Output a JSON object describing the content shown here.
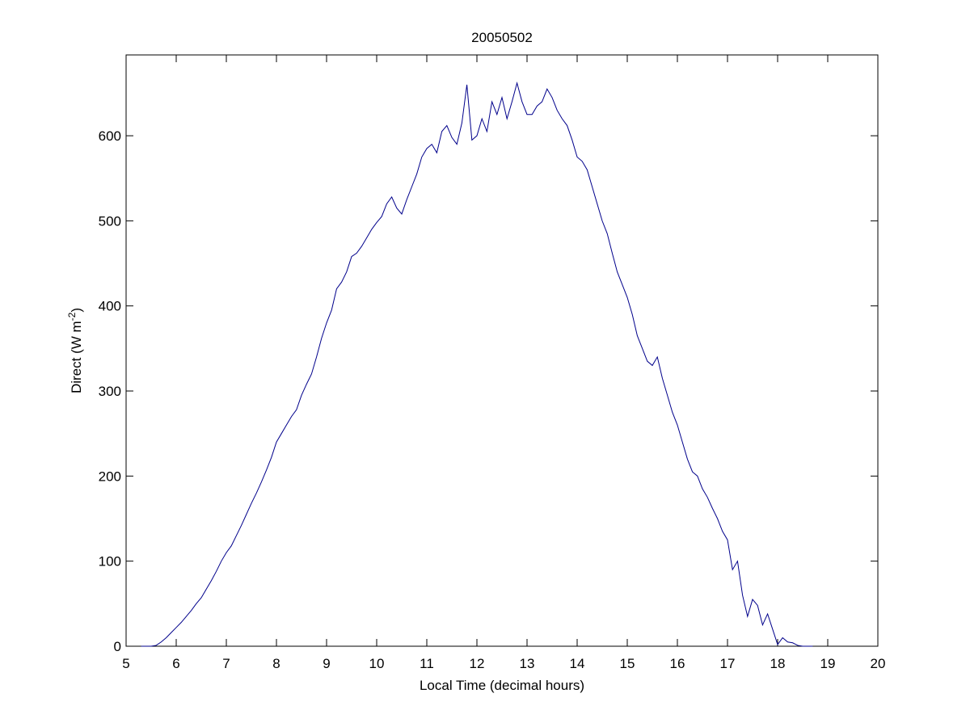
{
  "chart_data": {
    "type": "line",
    "title": "20050502",
    "xlabel": "Local Time (decimal hours)",
    "ylabel": {
      "text": "Direct (W m",
      "superscript": "-2",
      "suffix": ")"
    },
    "x": [
      5.3,
      5.4,
      5.5,
      5.6,
      5.7,
      5.8,
      5.9,
      6.0,
      6.1,
      6.2,
      6.3,
      6.4,
      6.5,
      6.6,
      6.7,
      6.8,
      6.9,
      7.0,
      7.1,
      7.2,
      7.3,
      7.4,
      7.5,
      7.6,
      7.7,
      7.8,
      7.9,
      8.0,
      8.1,
      8.2,
      8.3,
      8.4,
      8.5,
      8.6,
      8.7,
      8.8,
      8.9,
      9.0,
      9.1,
      9.2,
      9.3,
      9.4,
      9.5,
      9.6,
      9.7,
      9.8,
      9.9,
      10.0,
      10.1,
      10.2,
      10.3,
      10.4,
      10.5,
      10.6,
      10.7,
      10.8,
      10.9,
      11.0,
      11.1,
      11.2,
      11.3,
      11.4,
      11.5,
      11.6,
      11.7,
      11.8,
      11.9,
      12.0,
      12.1,
      12.2,
      12.3,
      12.4,
      12.5,
      12.6,
      12.7,
      12.8,
      12.9,
      13.0,
      13.1,
      13.2,
      13.3,
      13.4,
      13.5,
      13.6,
      13.7,
      13.8,
      13.9,
      14.0,
      14.1,
      14.2,
      14.3,
      14.4,
      14.5,
      14.6,
      14.7,
      14.8,
      14.9,
      15.0,
      15.1,
      15.2,
      15.3,
      15.4,
      15.5,
      15.6,
      15.7,
      15.8,
      15.9,
      16.0,
      16.1,
      16.2,
      16.3,
      16.4,
      16.5,
      16.6,
      16.7,
      16.8,
      16.9,
      17.0,
      17.1,
      17.2,
      17.3,
      17.4,
      17.5,
      17.6,
      17.7,
      17.8,
      17.9,
      18.0,
      18.1,
      18.2,
      18.3,
      18.4,
      18.5,
      18.6,
      18.7
    ],
    "series": [
      {
        "color": "#00008b",
        "values": [
          0,
          0,
          0,
          1,
          5,
          10,
          16,
          22,
          28,
          35,
          42,
          50,
          57,
          67,
          77,
          88,
          100,
          110,
          118,
          130,
          142,
          155,
          168,
          180,
          193,
          207,
          222,
          240,
          250,
          260,
          270,
          278,
          295,
          308,
          320,
          340,
          362,
          380,
          395,
          420,
          428,
          440,
          458,
          462,
          470,
          480,
          490,
          498,
          505,
          520,
          528,
          515,
          508,
          525,
          540,
          555,
          575,
          585,
          590,
          580,
          605,
          612,
          598,
          590,
          615,
          660,
          595,
          600,
          620,
          605,
          640,
          625,
          645,
          620,
          640,
          662,
          640,
          625,
          625,
          635,
          640,
          655,
          645,
          630,
          620,
          612,
          595,
          575,
          570,
          560,
          540,
          520,
          500,
          485,
          462,
          440,
          425,
          410,
          390,
          365,
          350,
          335,
          330,
          340,
          315,
          295,
          275,
          260,
          240,
          220,
          205,
          200,
          185,
          175,
          162,
          150,
          135,
          125,
          90,
          100,
          60,
          35,
          55,
          48,
          25,
          38,
          20,
          2,
          10,
          5,
          4,
          1,
          0,
          0,
          0
        ]
      }
    ],
    "xlim": [
      5,
      20
    ],
    "xticks": [
      5,
      6,
      7,
      8,
      9,
      10,
      11,
      12,
      13,
      14,
      15,
      16,
      17,
      18,
      19,
      20
    ],
    "ylim": [
      0,
      695
    ],
    "yticks": [
      0,
      100,
      200,
      300,
      400,
      500,
      600
    ],
    "grid": false
  }
}
